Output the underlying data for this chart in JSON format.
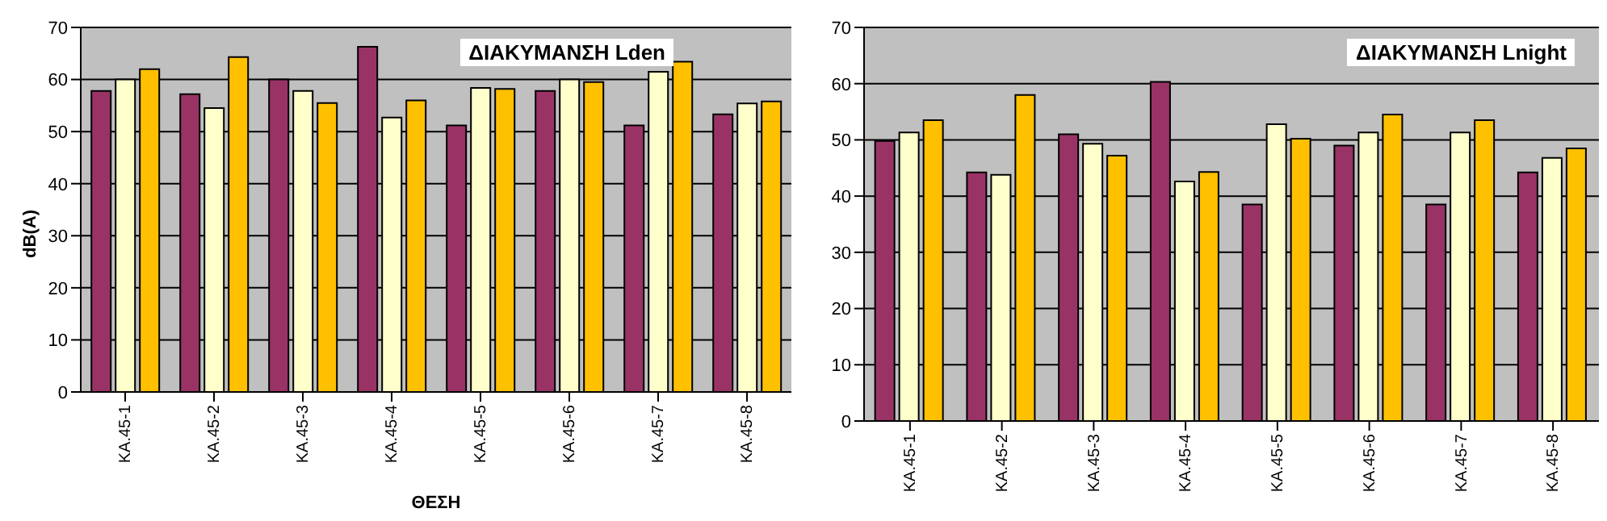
{
  "chart_data": [
    {
      "type": "bar",
      "title": "ΔΙΑΚΥΜΑΝΣΗ Lden",
      "xlabel": "ΘΕΣΗ",
      "ylabel": "dB(A)",
      "categories": [
        "ΚΑ.45-1",
        "ΚΑ.45-2",
        "ΚΑ.45-3",
        "ΚΑ.45-4",
        "ΚΑ.45-5",
        "ΚΑ.45-6",
        "ΚΑ.45-7",
        "ΚΑ.45-8"
      ],
      "series": [
        {
          "color": "#993366",
          "values": [
            57.8,
            57.2,
            60,
            66.3,
            51.2,
            57.8,
            51.2,
            53.3
          ]
        },
        {
          "color": "#ffffcc",
          "values": [
            60,
            54.5,
            57.8,
            52.7,
            58.4,
            60,
            61.5,
            55.4
          ]
        },
        {
          "color": "#ffc000",
          "values": [
            62,
            64.3,
            55.5,
            56,
            58.2,
            59.5,
            63.4,
            55.8
          ]
        }
      ],
      "ylim": [
        0,
        70
      ],
      "yticks": [
        0,
        10,
        20,
        30,
        40,
        50,
        60,
        70
      ],
      "grid": "y",
      "legend": false
    },
    {
      "type": "bar",
      "title": "ΔΙΑΚΥΜΑΝΣΗ Lnight",
      "categories": [
        "ΚΑ.45-1",
        "ΚΑ.45-2",
        "ΚΑ.45-3",
        "ΚΑ.45-4",
        "ΚΑ.45-5",
        "ΚΑ.45-6",
        "ΚΑ.45-7",
        "ΚΑ.45-8"
      ],
      "series": [
        {
          "color": "#993366",
          "values": [
            49.8,
            44.2,
            51,
            60.3,
            38.5,
            49,
            38.5,
            44.2
          ]
        },
        {
          "color": "#ffffcc",
          "values": [
            51.3,
            43.8,
            49.3,
            42.6,
            52.8,
            51.3,
            51.3,
            46.8
          ]
        },
        {
          "color": "#ffc000",
          "values": [
            53.5,
            58,
            47.2,
            44.3,
            50.2,
            54.5,
            53.5,
            48.5
          ]
        }
      ],
      "ylim": [
        0,
        70
      ],
      "yticks": [
        0,
        10,
        20,
        30,
        40,
        50,
        60,
        70
      ],
      "grid": "y",
      "legend": false
    }
  ]
}
